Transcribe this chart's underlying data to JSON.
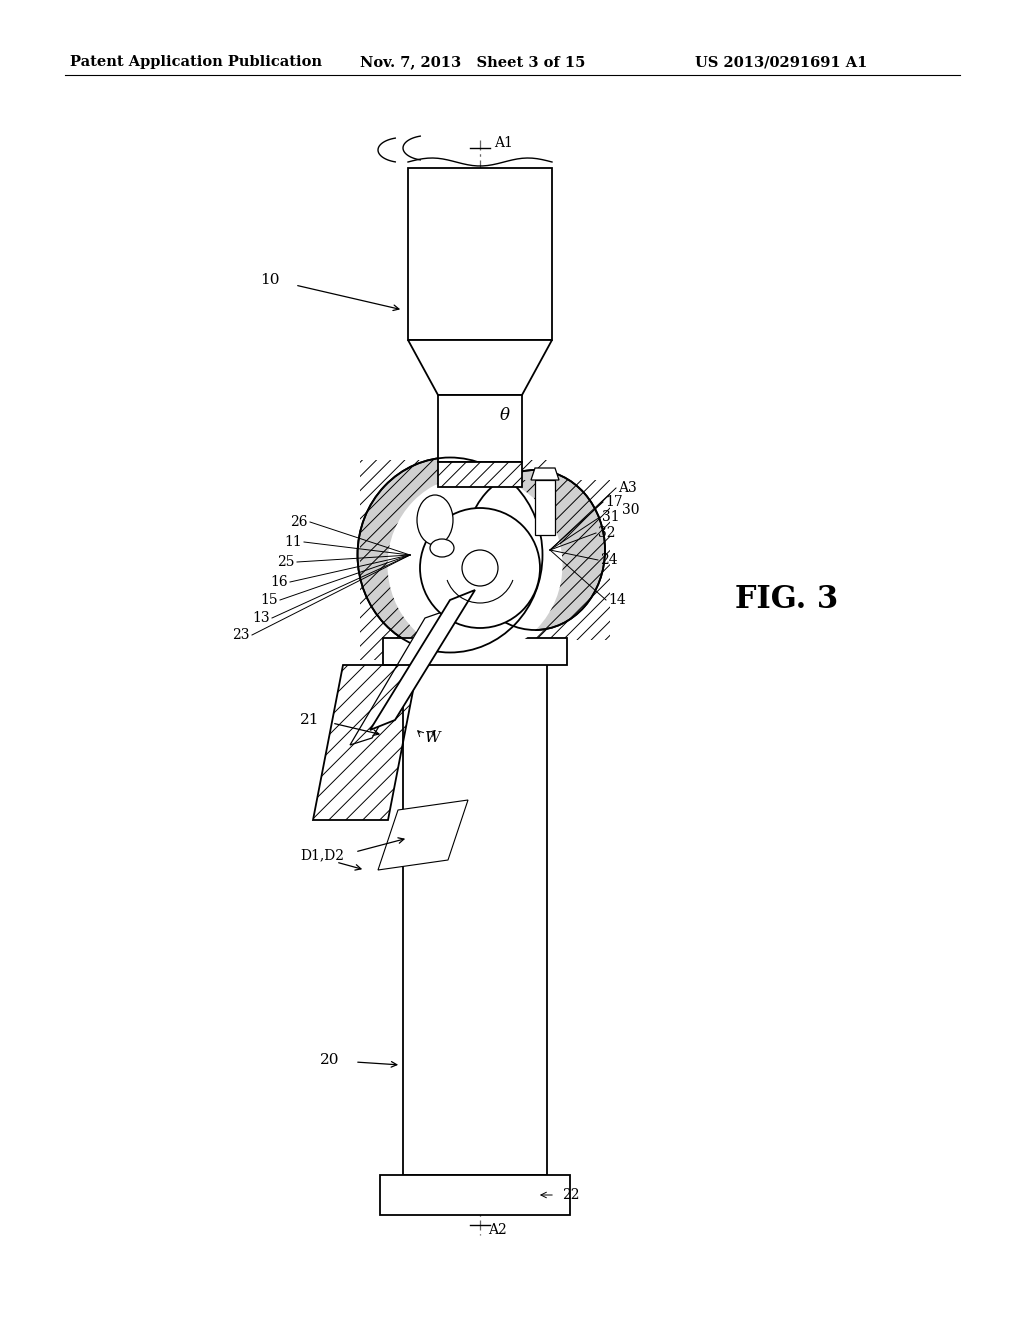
{
  "bg_color": "#ffffff",
  "line_color": "#000000",
  "header_left": "Patent Application Publication",
  "header_mid": "Nov. 7, 2013   Sheet 3 of 15",
  "header_right": "US 2013/0291691 A1",
  "fig_label": "FIG. 3",
  "header_fontsize": 10.5,
  "label_fontsize": 11,
  "small_fontsize": 10
}
